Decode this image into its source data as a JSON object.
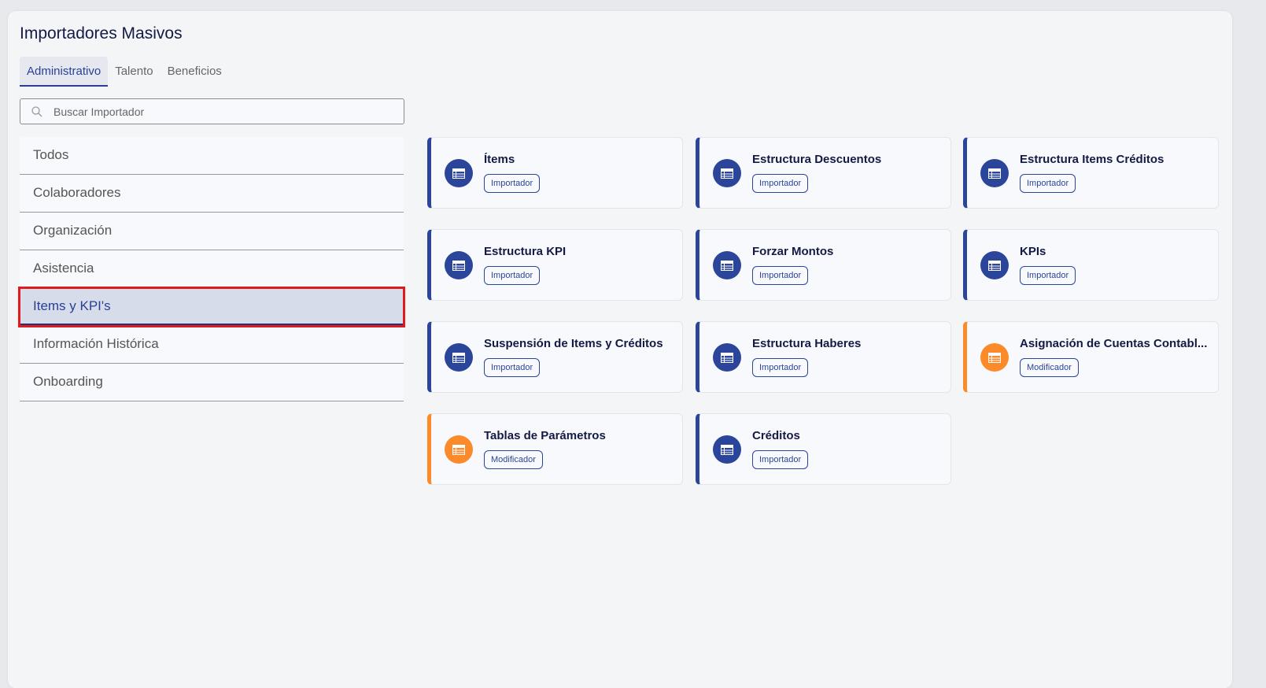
{
  "title": "Importadores Masivos",
  "tabs": [
    {
      "label": "Administrativo",
      "active": true
    },
    {
      "label": "Talento"
    },
    {
      "label": "Beneficios"
    }
  ],
  "search": {
    "placeholder": "Buscar Importador",
    "icon": "search-icon"
  },
  "categories": [
    {
      "label": "Todos"
    },
    {
      "label": "Colaboradores"
    },
    {
      "label": "Organización"
    },
    {
      "label": "Asistencia"
    },
    {
      "label": "Items y KPI's",
      "selected": true
    },
    {
      "label": "Información Histórica"
    },
    {
      "label": "Onboarding"
    }
  ],
  "colors": {
    "primary": "#2a4599",
    "modifier": "#fb8a2a",
    "highlight": "#e01b1b"
  },
  "cards": [
    {
      "title": "Ítems",
      "badge": "Importador",
      "icon": "table-icon",
      "color": "blue"
    },
    {
      "title": "Estructura Descuentos",
      "badge": "Importador",
      "icon": "table-icon",
      "color": "blue"
    },
    {
      "title": "Estructura Items Créditos",
      "badge": "Importador",
      "icon": "table-icon",
      "color": "blue"
    },
    {
      "title": "Estructura KPI",
      "badge": "Importador",
      "icon": "table-icon",
      "color": "blue"
    },
    {
      "title": "Forzar Montos",
      "badge": "Importador",
      "icon": "table-icon",
      "color": "blue"
    },
    {
      "title": "KPIs",
      "badge": "Importador",
      "icon": "table-icon",
      "color": "blue"
    },
    {
      "title": "Suspensión de Items y Créditos",
      "badge": "Importador",
      "icon": "table-icon",
      "color": "blue"
    },
    {
      "title": "Estructura Haberes",
      "badge": "Importador",
      "icon": "table-icon",
      "color": "blue"
    },
    {
      "title": "Asignación de Cuentas Contabl...",
      "badge": "Modificador",
      "icon": "table-icon",
      "color": "orange"
    },
    {
      "title": "Tablas de Parámetros",
      "badge": "Modificador",
      "icon": "table-icon",
      "color": "orange"
    },
    {
      "title": "Créditos",
      "badge": "Importador",
      "icon": "table-icon",
      "color": "blue"
    }
  ]
}
